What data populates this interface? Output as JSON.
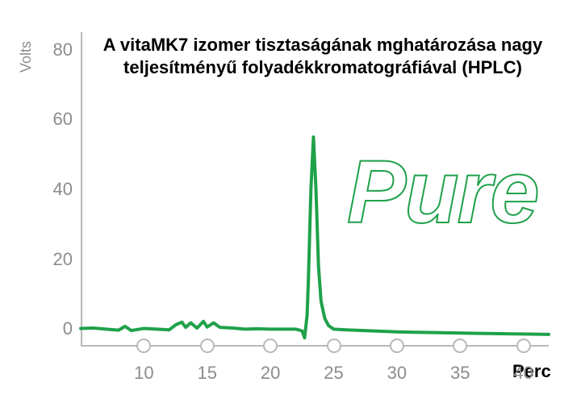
{
  "chart": {
    "type": "line",
    "title": "A vitaMK7 izomer tisztaságának mghatározása nagy teljesítményű folyadékkromatográfiával (HPLC)",
    "title_fontsize": 22,
    "ylabel": "Volts",
    "xlabel": "Perc",
    "label_fontsize": 22,
    "xlim": [
      5,
      42
    ],
    "ylim": [
      -5,
      85
    ],
    "xtick_values": [
      10,
      15,
      20,
      25,
      30,
      35,
      40
    ],
    "ytick_values": [
      0,
      20,
      40,
      60,
      80
    ],
    "line_color": "#1fa14a",
    "line_width": 4,
    "axis_color": "#b8b8b8",
    "ytick_label_color": "#8c8c8c",
    "xtick_label_color": "#8c8c8c",
    "ylabel_color": "#8c8c8c",
    "marker_border_color": "#b8b8b8",
    "marker_style": "hollow-circle",
    "background_color": "#ffffff",
    "overlay_text": "Pure",
    "overlay_font_style": "italic-outline",
    "overlay_fontsize": 110,
    "data": [
      [
        5,
        0.2
      ],
      [
        6,
        0.3
      ],
      [
        7,
        0.0
      ],
      [
        8,
        -0.3
      ],
      [
        8.5,
        0.8
      ],
      [
        9,
        -0.4
      ],
      [
        10,
        0.2
      ],
      [
        11,
        0.0
      ],
      [
        12,
        -0.2
      ],
      [
        12.5,
        1.2
      ],
      [
        13,
        2.0
      ],
      [
        13.3,
        0.5
      ],
      [
        13.7,
        1.8
      ],
      [
        14.2,
        0.3
      ],
      [
        14.7,
        2.2
      ],
      [
        15,
        0.6
      ],
      [
        15.5,
        1.8
      ],
      [
        16,
        0.5
      ],
      [
        17,
        0.3
      ],
      [
        18,
        0.0
      ],
      [
        19,
        0.1
      ],
      [
        20,
        0.0
      ],
      [
        21,
        0.0
      ],
      [
        22,
        0.0
      ],
      [
        22.5,
        -0.5
      ],
      [
        22.7,
        -2.5
      ],
      [
        22.9,
        4.0
      ],
      [
        23.0,
        14.0
      ],
      [
        23.2,
        40.0
      ],
      [
        23.4,
        55.0
      ],
      [
        23.6,
        40.0
      ],
      [
        23.8,
        18.0
      ],
      [
        24.0,
        8.0
      ],
      [
        24.3,
        3.0
      ],
      [
        24.6,
        1.0
      ],
      [
        25,
        0.0
      ],
      [
        26,
        -0.2
      ],
      [
        28,
        -0.5
      ],
      [
        30,
        -0.8
      ],
      [
        33,
        -1.0
      ],
      [
        36,
        -1.2
      ],
      [
        40,
        -1.4
      ],
      [
        42,
        -1.5
      ]
    ]
  }
}
